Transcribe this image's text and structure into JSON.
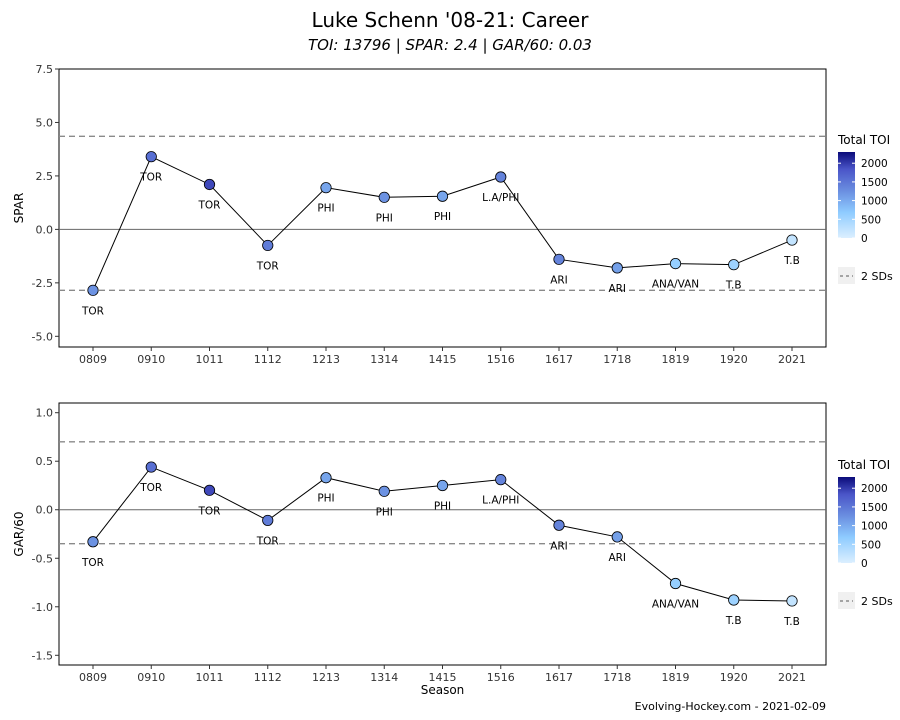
{
  "header": {
    "title": "Luke Schenn '08-21: Career",
    "subtitle": "TOI: 13796 | SPAR: 2.4 | GAR/60: 0.03"
  },
  "caption": "Evolving-Hockey.com - 2021-02-09",
  "chart_data": [
    {
      "type": "line",
      "ylabel": "SPAR",
      "xlabel": "",
      "ylim": [
        -5.5,
        7.5
      ],
      "yticks": [
        -5.0,
        -2.5,
        0.0,
        2.5,
        5.0,
        7.5
      ],
      "ytick_labels": [
        "-5.0",
        "-2.5",
        "0.0",
        "2.5",
        "5.0",
        "7.5"
      ],
      "reference_lines": {
        "zero": 0.0,
        "sd_upper": 4.35,
        "sd_lower": -2.85
      },
      "categories": [
        "0809",
        "0910",
        "1011",
        "1112",
        "1213",
        "1314",
        "1415",
        "1516",
        "1617",
        "1718",
        "1819",
        "1920",
        "2021"
      ],
      "values": [
        -2.85,
        3.4,
        2.1,
        -0.75,
        1.95,
        1.5,
        1.55,
        2.45,
        -1.4,
        -1.8,
        -1.6,
        -1.65,
        -0.5
      ],
      "teams": [
        "TOR",
        "TOR",
        "TOR",
        "TOR",
        "PHI",
        "PHI",
        "PHI",
        "L.A/PHI",
        "ARI",
        "ARI",
        "ANA/VAN",
        "T.B",
        "T.B"
      ],
      "toi": [
        1230,
        1580,
        1920,
        1450,
        1050,
        1230,
        1050,
        1380,
        1380,
        1100,
        620,
        560,
        220
      ],
      "grid": false,
      "legend": {
        "title": "Total TOI",
        "ticks": [
          2000,
          1500,
          1000,
          500,
          0
        ],
        "tick_labels": [
          "2000",
          "1500",
          "1000",
          "500",
          "0"
        ],
        "range": [
          0,
          2300
        ],
        "line_label": "2 SDs",
        "position": "right"
      }
    },
    {
      "type": "line",
      "ylabel": "GAR/60",
      "xlabel": "Season",
      "ylim": [
        -1.6,
        1.1
      ],
      "yticks": [
        -1.5,
        -1.0,
        -0.5,
        0.0,
        0.5,
        1.0
      ],
      "ytick_labels": [
        "-1.5",
        "-1.0",
        "-0.5",
        "0.0",
        "0.5",
        "1.0"
      ],
      "reference_lines": {
        "zero": 0.0,
        "sd_upper": 0.7,
        "sd_lower": -0.35
      },
      "categories": [
        "0809",
        "0910",
        "1011",
        "1112",
        "1213",
        "1314",
        "1415",
        "1516",
        "1617",
        "1718",
        "1819",
        "1920",
        "2021"
      ],
      "values": [
        -0.33,
        0.44,
        0.2,
        -0.11,
        0.33,
        0.19,
        0.25,
        0.31,
        -0.16,
        -0.28,
        -0.76,
        -0.93,
        -0.94
      ],
      "teams": [
        "TOR",
        "TOR",
        "TOR",
        "TOR",
        "PHI",
        "PHI",
        "PHI",
        "L.A/PHI",
        "ARI",
        "ARI",
        "ANA/VAN",
        "T.B",
        "T.B"
      ],
      "toi": [
        1230,
        1580,
        1920,
        1450,
        1050,
        1230,
        1050,
        1380,
        1380,
        1100,
        620,
        560,
        220
      ],
      "grid": false,
      "legend": {
        "title": "Total TOI",
        "ticks": [
          2000,
          1500,
          1000,
          500,
          0
        ],
        "tick_labels": [
          "2000",
          "1500",
          "1000",
          "500",
          "0"
        ],
        "range": [
          0,
          2300
        ],
        "line_label": "2 SDs",
        "position": "right"
      }
    }
  ],
  "colors": {
    "toi_low": "#dcefff",
    "toi_mid_low": "#8ecbff",
    "toi_mid": "#6a8ee0",
    "toi_mid_high": "#4a55c8",
    "toi_high": "#0b0b7a",
    "ref_line": "#8a8a8a",
    "zero_line": "#666666",
    "series_line": "#000000"
  }
}
